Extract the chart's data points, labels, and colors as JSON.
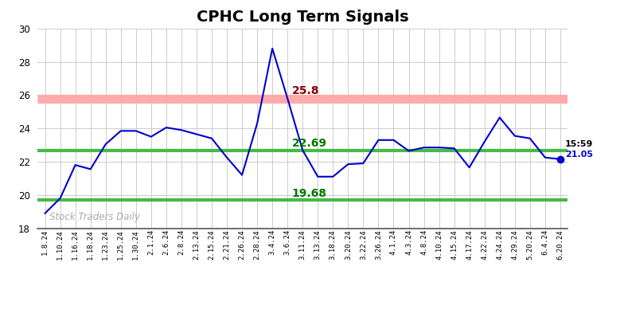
{
  "title": "CPHC Long Term Signals",
  "xlabels": [
    "1.8.24",
    "1.10.24",
    "1.16.24",
    "1.18.24",
    "1.23.24",
    "1.25.24",
    "1.30.24",
    "2.1.24",
    "2.6.24",
    "2.8.24",
    "2.13.24",
    "2.15.24",
    "2.21.24",
    "2.26.24",
    "2.28.24",
    "3.4.24",
    "3.6.24",
    "3.11.24",
    "3.13.24",
    "3.18.24",
    "3.20.24",
    "3.22.24",
    "3.26.24",
    "4.1.24",
    "4.3.24",
    "4.8.24",
    "4.10.24",
    "4.15.24",
    "4.17.24",
    "4.22.24",
    "4.24.24",
    "4.29.24",
    "5.20.24",
    "6.4.24",
    "6.20.24"
  ],
  "yvalues": [
    18.9,
    19.8,
    21.8,
    21.55,
    23.05,
    23.85,
    23.85,
    23.5,
    24.05,
    23.9,
    23.65,
    23.4,
    22.25,
    21.2,
    24.3,
    28.8,
    25.8,
    22.69,
    21.1,
    21.1,
    21.85,
    21.9,
    23.3,
    23.3,
    22.65,
    22.85,
    22.85,
    22.8,
    21.65,
    23.2,
    24.65,
    23.55,
    23.4,
    22.25,
    22.15,
    21.05
  ],
  "line_color": "#0000cc",
  "hline_red": 25.8,
  "hline_red_color": "#ffaaaa",
  "hline_mid": 22.69,
  "hline_mid_color": "#44bb44",
  "hline_low": 19.68,
  "hline_low_color": "#44bb44",
  "annotation_red_color": "#880000",
  "annotation_green_color": "#007700",
  "last_label": "15:59",
  "last_value_label": "21.05",
  "last_dot_color": "#0000cc",
  "watermark": "Stock Traders Daily",
  "watermark_color": "#aaaaaa",
  "ylim": [
    18,
    30
  ],
  "yticks": [
    18,
    20,
    22,
    24,
    26,
    28,
    30
  ],
  "bg_color": "#ffffff",
  "grid_color": "#cccccc",
  "title_fontsize": 14
}
